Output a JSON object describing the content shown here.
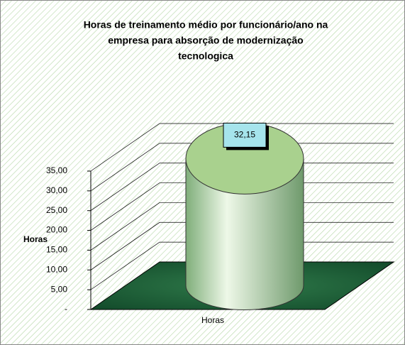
{
  "chart_data": {
    "type": "cylinder",
    "title": [
      "Horas de treinamento médio por funcionário/ano na",
      "empresa para absorção de modernização",
      "tecnologica"
    ],
    "y_label": "Horas",
    "categories": [
      "Horas"
    ],
    "values": [
      32.15
    ],
    "value_labels": [
      "32,15"
    ],
    "color": "#a9d18e",
    "ylim": [
      0,
      35
    ],
    "yticks": [
      {
        "value": 0,
        "label": "-"
      },
      {
        "value": 5,
        "label": "5,00"
      },
      {
        "value": 10,
        "label": "10,00"
      },
      {
        "value": 15,
        "label": "15,00"
      },
      {
        "value": 20,
        "label": "20,00"
      },
      {
        "value": 25,
        "label": "25,00"
      },
      {
        "value": 30,
        "label": "30,00"
      },
      {
        "value": 35,
        "label": "35,00"
      }
    ],
    "grid": true
  }
}
